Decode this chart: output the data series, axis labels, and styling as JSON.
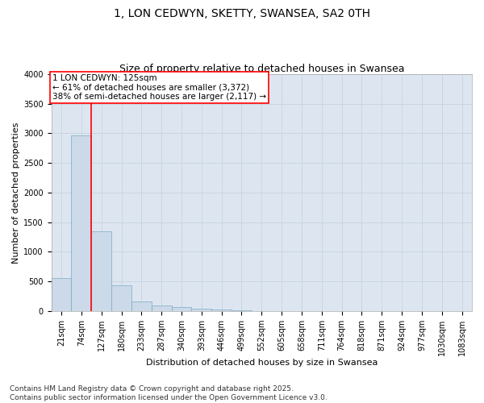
{
  "title_line1": "1, LON CEDWYN, SKETTY, SWANSEA, SA2 0TH",
  "title_line2": "Size of property relative to detached houses in Swansea",
  "xlabel": "Distribution of detached houses by size in Swansea",
  "ylabel": "Number of detached properties",
  "bar_color": "#ccd9e8",
  "bar_edge_color": "#7aaac8",
  "grid_color": "#c5d3e0",
  "background_color": "#dde6f0",
  "categories": [
    "21sqm",
    "74sqm",
    "127sqm",
    "180sqm",
    "233sqm",
    "287sqm",
    "340sqm",
    "393sqm",
    "446sqm",
    "499sqm",
    "552sqm",
    "605sqm",
    "658sqm",
    "711sqm",
    "764sqm",
    "818sqm",
    "871sqm",
    "924sqm",
    "977sqm",
    "1030sqm",
    "1083sqm"
  ],
  "values": [
    560,
    2960,
    1340,
    430,
    160,
    100,
    60,
    40,
    30,
    5,
    0,
    0,
    0,
    0,
    0,
    0,
    0,
    0,
    0,
    0,
    0
  ],
  "annotation_text_line1": "1 LON CEDWYN: 125sqm",
  "annotation_text_line2": "← 61% of detached houses are smaller (3,372)",
  "annotation_text_line3": "38% of semi-detached houses are larger (2,117) →",
  "annotation_box_color": "white",
  "annotation_box_edge_color": "red",
  "vline_color": "red",
  "vline_x_bin": 1.5,
  "ylim_max": 4000,
  "yticks": [
    0,
    500,
    1000,
    1500,
    2000,
    2500,
    3000,
    3500,
    4000
  ],
  "footnote_line1": "Contains HM Land Registry data © Crown copyright and database right 2025.",
  "footnote_line2": "Contains public sector information licensed under the Open Government Licence v3.0.",
  "title_fontsize": 10,
  "subtitle_fontsize": 9,
  "axis_label_fontsize": 8,
  "tick_fontsize": 7,
  "annotation_fontsize": 7.5,
  "footnote_fontsize": 6.5
}
